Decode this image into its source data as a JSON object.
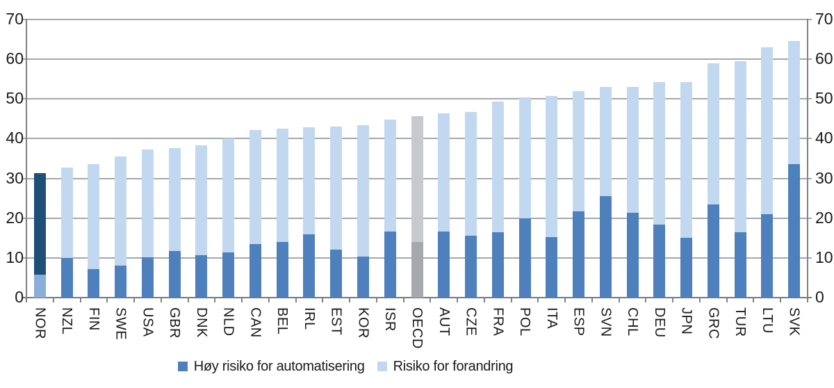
{
  "chart_data": {
    "type": "bar",
    "stacked": true,
    "categories": [
      "NOR",
      "NZL",
      "FIN",
      "SWE",
      "USA",
      "GBR",
      "DNK",
      "NLD",
      "CAN",
      "BEL",
      "IRL",
      "EST",
      "KOR",
      "ISR",
      "OECD",
      "AUT",
      "CZE",
      "FRA",
      "POL",
      "ITA",
      "ESP",
      "SVN",
      "CHL",
      "DEU",
      "JPN",
      "GRC",
      "TUR",
      "LTU",
      "SVK"
    ],
    "series": [
      {
        "name": "Høy risiko for automatisering",
        "color": "#4d80bc",
        "values": [
          5.7,
          10.0,
          7.2,
          8.0,
          10.2,
          11.7,
          10.6,
          11.4,
          13.5,
          14.0,
          16.0,
          12.1,
          10.4,
          16.7,
          14.0,
          16.6,
          15.5,
          16.4,
          19.9,
          15.3,
          21.7,
          25.6,
          21.4,
          18.4,
          15.1,
          23.4,
          16.4,
          21.0,
          33.6
        ]
      },
      {
        "name": "Risiko for forandring",
        "color": "#c2d8f0",
        "values": [
          25.6,
          22.8,
          26.4,
          27.5,
          27.0,
          26.0,
          27.7,
          28.6,
          28.6,
          28.5,
          26.9,
          31.0,
          33.0,
          28.1,
          31.6,
          29.8,
          31.3,
          32.9,
          30.5,
          35.5,
          30.2,
          27.4,
          31.7,
          35.8,
          39.1,
          35.5,
          43.1,
          42.0,
          30.9
        ]
      }
    ],
    "ylim": [
      0,
      70
    ],
    "yticks": [
      0,
      10,
      20,
      30,
      40,
      50,
      60,
      70
    ],
    "y_axis_sides": "both",
    "grid": true,
    "legend_position": "bottom",
    "highlighted_bars": {
      "NOR": {
        "automation_color": "#8badd9",
        "change_color": "#1f4e79"
      },
      "OECD": {
        "automation_color": "#a6a8ab",
        "change_color": "#c7c9cc"
      }
    }
  },
  "colors": {
    "bar_auto": "#4d80bc",
    "bar_change": "#c2d8f0",
    "nor_auto": "#8badd9",
    "nor_change": "#1f4e79",
    "oecd_auto": "#a6a8ab",
    "oecd_change": "#c7c9cc",
    "gridline": "#a4a8ab",
    "axis": "#7e8285",
    "text": "#1a1a1a",
    "background": "#ffffff"
  },
  "legend": {
    "items": [
      {
        "label": "Høy risiko for automatisering",
        "swatch": "bar_auto"
      },
      {
        "label": "Risiko for forandring",
        "swatch": "bar_change"
      }
    ]
  }
}
